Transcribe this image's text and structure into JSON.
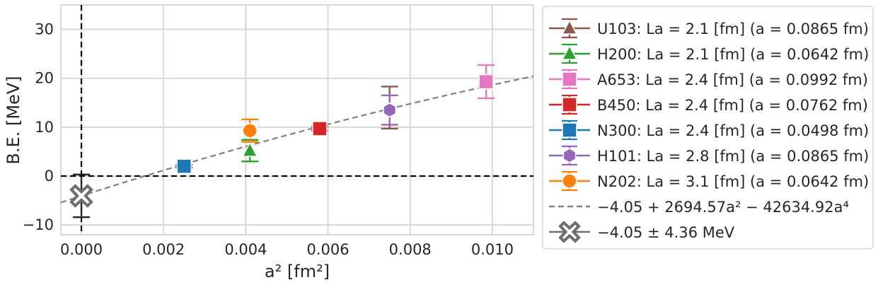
{
  "chart_data": {
    "type": "scatter",
    "xlabel": "a² [fm²]",
    "ylabel": "B.E. [MeV]",
    "xlim": [
      -0.0005,
      0.011
    ],
    "ylim": [
      -12,
      35
    ],
    "xticks": [
      0.0,
      0.002,
      0.004,
      0.006,
      0.008,
      0.01
    ],
    "xtick_labels": [
      "0.000",
      "0.002",
      "0.004",
      "0.006",
      "0.008",
      "0.010"
    ],
    "yticks": [
      -10,
      0,
      10,
      20,
      30
    ],
    "ytick_labels": [
      "−10",
      "0",
      "10",
      "20",
      "30"
    ],
    "grid": true,
    "legend_position": "outside-right",
    "reference_lines": {
      "vertical_x": 0,
      "horizontal_y": 0,
      "style": "dashed",
      "color": "#000000"
    },
    "series": [
      {
        "label": "U103: La = 2.1 [fm] (a = 0.0865 fm)",
        "ensemble": "U103",
        "color": "#8c564b",
        "marker": "triangle",
        "x": 0.0075,
        "y": 14.0,
        "err": 4.3
      },
      {
        "label": "H200: La = 2.1 [fm] (a = 0.0642 fm)",
        "ensemble": "H200",
        "color": "#2ca02c",
        "marker": "triangle",
        "x": 0.0041,
        "y": 5.2,
        "err": 2.2
      },
      {
        "label": "A653: La = 2.4 [fm] (a = 0.0992 fm)",
        "ensemble": "A653",
        "color": "#e377c2",
        "marker": "square",
        "x": 0.00985,
        "y": 19.3,
        "err": 3.4
      },
      {
        "label": "B450: La = 2.4 [fm] (a = 0.0762 fm)",
        "ensemble": "B450",
        "color": "#d62728",
        "marker": "square",
        "x": 0.0058,
        "y": 9.7,
        "err": 0.4
      },
      {
        "label": "N300: La = 2.4 [fm] (a = 0.0498 fm)",
        "ensemble": "N300",
        "color": "#1f77b4",
        "marker": "square",
        "x": 0.0025,
        "y": 2.0,
        "err": 0.3
      },
      {
        "label": "H101: La = 2.8 [fm] (a = 0.0865 fm)",
        "ensemble": "H101",
        "color": "#9467bd",
        "marker": "hexagon",
        "x": 0.0075,
        "y": 13.5,
        "err": 3.0
      },
      {
        "label": "N202: La = 3.1 [fm] (a = 0.0642 fm)",
        "ensemble": "N202",
        "color": "#ff7f0e",
        "marker": "circle",
        "x": 0.0041,
        "y": 9.3,
        "err": 2.3
      }
    ],
    "fit": {
      "label": "−4.05 + 2694.57a² − 42634.92a⁴",
      "c0": -4.05,
      "c1": 2694.57,
      "c2": -42634.92,
      "color": "#808080",
      "style": "dashed"
    },
    "extrapolation": {
      "label": "−4.05 ± 4.36 MeV",
      "x": 0.0,
      "y": -4.05,
      "err": 4.36,
      "color": "#6e6e6e",
      "marker": "X"
    }
  }
}
